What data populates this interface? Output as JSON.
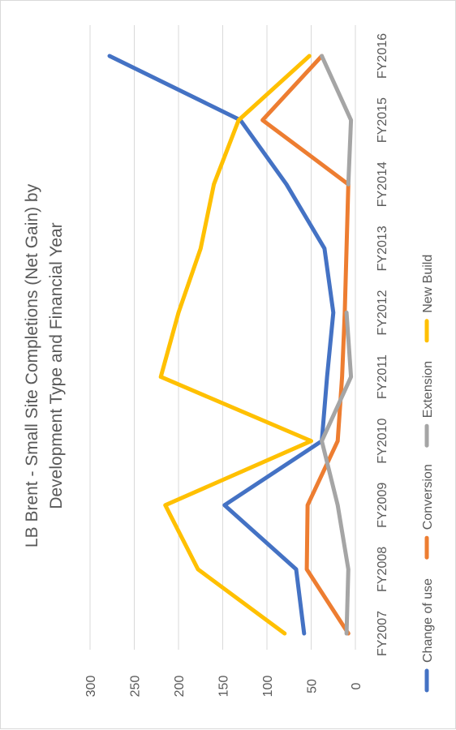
{
  "chart_data": {
    "type": "line",
    "title_line1": "LB Brent - Small Site Completions (Net Gain) by",
    "title_line2": "Development Type and Financial Year",
    "categories": [
      "FY2007",
      "FY2008",
      "FY2009",
      "FY2010",
      "FY2011",
      "FY2012",
      "FY2013",
      "FY2014",
      "FY2015",
      "FY2016"
    ],
    "series": [
      {
        "name": "Change of use",
        "color": "#4472C4",
        "values": [
          58,
          67,
          148,
          38,
          32,
          25,
          35,
          78,
          130,
          278
        ]
      },
      {
        "name": "Conversion",
        "color": "#ED7D31",
        "values": [
          8,
          55,
          54,
          20,
          15,
          12,
          10,
          8,
          105,
          38
        ]
      },
      {
        "name": "Extension",
        "color": "#A5A5A5",
        "values": [
          10,
          8,
          20,
          38,
          5,
          10,
          null,
          8,
          5,
          38
        ]
      },
      {
        "name": "New Build",
        "color": "#FFC000",
        "values": [
          80,
          178,
          215,
          50,
          220,
          200,
          175,
          160,
          132,
          52
        ]
      }
    ],
    "ylim": [
      0,
      300
    ],
    "yticks": [
      0,
      50,
      100,
      150,
      200,
      250,
      300
    ],
    "grid": true,
    "legend_position": "bottom",
    "orientation": "rotated-90-clockwise"
  }
}
